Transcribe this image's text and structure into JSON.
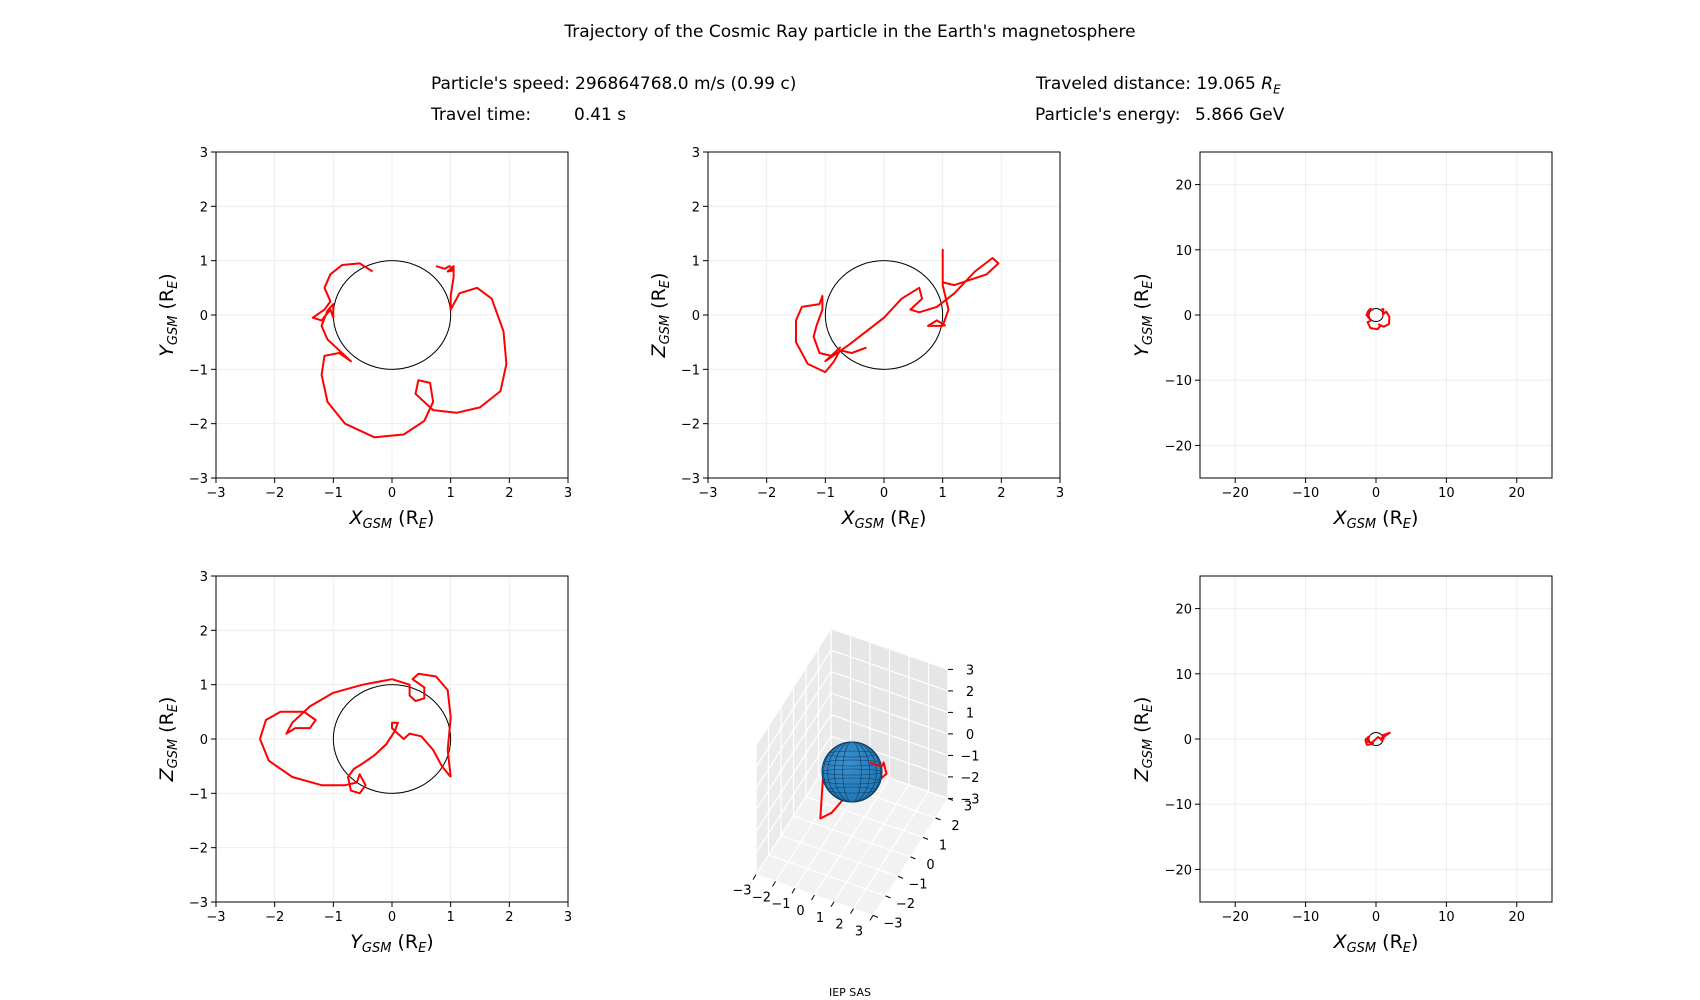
{
  "figure": {
    "title": "Trajectory of the Cosmic Ray particle in the Earth's magnetosphere",
    "footer": "IEP SAS",
    "colors": {
      "trajectory": "#ff0000",
      "earth": "#1f77b4",
      "earth_edge": "#0d3a5c",
      "outline": "#000000",
      "grid": "#eeeeee"
    }
  },
  "info": {
    "speed_label": "Particle's speed:",
    "speed_value": "296864768.0 m/s (0.99 c)",
    "time_label": "Travel time:",
    "time_value": "0.41 s",
    "distance_label": "Traveled distance:",
    "distance_value": "19.065",
    "distance_unit_base": "R",
    "distance_unit_sub": "E",
    "energy_label": "Particle's energy:",
    "energy_value": "5.866 GeV"
  },
  "chart_data": [
    {
      "id": "xy",
      "type": "line",
      "xlabel": "X",
      "xlabel_sub": "GSM",
      "xunit": "(R",
      "xunit_sub": "E",
      "ylabel": "Y",
      "ylabel_sub": "GSM",
      "yunit": "(R",
      "yunit_sub": "E",
      "xlim": [
        -3,
        3
      ],
      "ylim": [
        -3,
        3
      ],
      "xticks": [
        -3,
        -2,
        -1,
        0,
        1,
        2,
        3
      ],
      "yticks": [
        -3,
        -2,
        -1,
        0,
        1,
        2,
        3
      ],
      "grid": true,
      "earth_radius": 1,
      "series": [
        {
          "points": [
            [
              -0.33,
              0.8
            ],
            [
              -0.55,
              0.95
            ],
            [
              -0.85,
              0.92
            ],
            [
              -1.05,
              0.75
            ],
            [
              -1.15,
              0.5
            ],
            [
              -1.05,
              0.25
            ],
            [
              -1.15,
              0.1
            ],
            [
              -1.35,
              -0.05
            ],
            [
              -1.2,
              -0.1
            ],
            [
              -1.05,
              0.1
            ],
            [
              -1.0,
              -0.05
            ],
            [
              -1.0,
              0.2
            ],
            [
              -1.1,
              0.08
            ],
            [
              -1.2,
              -0.2
            ],
            [
              -1.1,
              -0.45
            ],
            [
              -0.9,
              -0.65
            ],
            [
              -0.7,
              -0.85
            ],
            [
              -0.9,
              -0.7
            ],
            [
              -1.15,
              -0.75
            ],
            [
              -1.2,
              -1.1
            ],
            [
              -1.1,
              -1.6
            ],
            [
              -0.8,
              -2.0
            ],
            [
              -0.3,
              -2.25
            ],
            [
              0.2,
              -2.2
            ],
            [
              0.55,
              -1.95
            ],
            [
              0.7,
              -1.6
            ],
            [
              0.65,
              -1.25
            ],
            [
              0.45,
              -1.2
            ],
            [
              0.4,
              -1.45
            ],
            [
              0.7,
              -1.75
            ],
            [
              1.1,
              -1.8
            ],
            [
              1.5,
              -1.7
            ],
            [
              1.85,
              -1.4
            ],
            [
              1.95,
              -0.9
            ],
            [
              1.9,
              -0.3
            ],
            [
              1.7,
              0.3
            ],
            [
              1.45,
              0.5
            ],
            [
              1.15,
              0.4
            ],
            [
              1.0,
              0.1
            ],
            [
              1.0,
              0.35
            ],
            [
              1.05,
              0.7
            ],
            [
              1.05,
              0.9
            ],
            [
              0.95,
              0.8
            ],
            [
              1.05,
              0.82
            ],
            [
              0.98,
              0.9
            ],
            [
              0.9,
              0.85
            ],
            [
              0.75,
              0.9
            ]
          ]
        }
      ]
    },
    {
      "id": "xz",
      "type": "line",
      "xlabel": "X",
      "xlabel_sub": "GSM",
      "xunit": "(R",
      "xunit_sub": "E",
      "ylabel": "Z",
      "ylabel_sub": "GSM",
      "yunit": "(R",
      "yunit_sub": "E",
      "xlim": [
        -3,
        3
      ],
      "ylim": [
        -3,
        3
      ],
      "xticks": [
        -3,
        -2,
        -1,
        0,
        1,
        2,
        3
      ],
      "yticks": [
        -3,
        -2,
        -1,
        0,
        1,
        2,
        3
      ],
      "grid": true,
      "earth_radius": 1,
      "series": [
        {
          "points": [
            [
              -0.3,
              -0.6
            ],
            [
              -0.55,
              -0.7
            ],
            [
              -0.75,
              -0.65
            ],
            [
              -0.85,
              -0.85
            ],
            [
              -1.0,
              -1.05
            ],
            [
              -1.3,
              -0.9
            ],
            [
              -1.5,
              -0.5
            ],
            [
              -1.5,
              -0.1
            ],
            [
              -1.4,
              0.15
            ],
            [
              -1.1,
              0.2
            ],
            [
              -1.05,
              0.35
            ],
            [
              -1.05,
              0.1
            ],
            [
              -1.15,
              -0.2
            ],
            [
              -1.2,
              -0.4
            ],
            [
              -1.1,
              -0.7
            ],
            [
              -0.9,
              -0.75
            ],
            [
              -0.75,
              -0.6
            ],
            [
              -1.0,
              -0.85
            ],
            [
              -0.6,
              -0.55
            ],
            [
              0.0,
              -0.05
            ],
            [
              0.3,
              0.3
            ],
            [
              0.6,
              0.5
            ],
            [
              0.65,
              0.3
            ],
            [
              0.45,
              0.1
            ],
            [
              0.6,
              0.05
            ],
            [
              0.9,
              0.15
            ],
            [
              1.2,
              0.4
            ],
            [
              1.55,
              0.8
            ],
            [
              1.85,
              1.05
            ],
            [
              1.95,
              0.95
            ],
            [
              1.75,
              0.75
            ],
            [
              1.2,
              0.55
            ],
            [
              1.0,
              0.6
            ],
            [
              1.0,
              1.2
            ],
            [
              1.0,
              0.55
            ],
            [
              1.1,
              0.1
            ],
            [
              1.0,
              -0.2
            ],
            [
              0.75,
              -0.2
            ],
            [
              0.9,
              -0.1
            ],
            [
              1.05,
              -0.2
            ]
          ]
        }
      ]
    },
    {
      "id": "xy_wide",
      "type": "line",
      "xlabel": "X",
      "xlabel_sub": "GSM",
      "xunit": "(R",
      "xunit_sub": "E",
      "ylabel": "Y",
      "ylabel_sub": "GSM",
      "yunit": "(R",
      "yunit_sub": "E",
      "xlim": [
        -25,
        25
      ],
      "ylim": [
        -25,
        25
      ],
      "xticks": [
        -20,
        -10,
        0,
        10,
        20
      ],
      "yticks": [
        -20,
        -10,
        0,
        10,
        20
      ],
      "grid": true,
      "earth_radius": 1,
      "series": [
        {
          "points": [
            [
              -0.33,
              0.8
            ],
            [
              -0.85,
              0.92
            ],
            [
              -1.15,
              0.5
            ],
            [
              -1.35,
              -0.05
            ],
            [
              -1.0,
              0.2
            ],
            [
              -1.2,
              -0.2
            ],
            [
              -0.7,
              -0.85
            ],
            [
              -1.2,
              -1.1
            ],
            [
              -0.8,
              -2.0
            ],
            [
              0.2,
              -2.2
            ],
            [
              0.7,
              -1.6
            ],
            [
              0.4,
              -1.45
            ],
            [
              1.1,
              -1.8
            ],
            [
              1.85,
              -1.4
            ],
            [
              1.9,
              -0.3
            ],
            [
              1.45,
              0.5
            ],
            [
              1.0,
              0.1
            ],
            [
              1.05,
              0.9
            ],
            [
              0.75,
              0.9
            ]
          ]
        }
      ]
    },
    {
      "id": "yz",
      "type": "line",
      "xlabel": "Y",
      "xlabel_sub": "GSM",
      "xunit": "(R",
      "xunit_sub": "E",
      "ylabel": "Z",
      "ylabel_sub": "GSM",
      "yunit": "(R",
      "yunit_sub": "E",
      "xlim": [
        -3,
        3
      ],
      "ylim": [
        -3,
        3
      ],
      "xticks": [
        -3,
        -2,
        -1,
        0,
        1,
        2,
        3
      ],
      "yticks": [
        -3,
        -2,
        -1,
        0,
        1,
        2,
        3
      ],
      "grid": true,
      "earth_radius": 1,
      "series": [
        {
          "points": [
            [
              1.0,
              -0.7
            ],
            [
              0.85,
              -0.5
            ],
            [
              0.7,
              -0.2
            ],
            [
              0.5,
              0.05
            ],
            [
              0.3,
              0.1
            ],
            [
              0.2,
              0.0
            ],
            [
              0.05,
              0.15
            ],
            [
              0.1,
              0.3
            ],
            [
              0.0,
              0.3
            ],
            [
              0.0,
              0.2
            ],
            [
              0.05,
              0.15
            ],
            [
              -0.1,
              -0.1
            ],
            [
              -0.3,
              -0.3
            ],
            [
              -0.5,
              -0.45
            ],
            [
              -0.65,
              -0.55
            ],
            [
              -0.75,
              -0.7
            ],
            [
              -0.7,
              -0.95
            ],
            [
              -0.55,
              -1.0
            ],
            [
              -0.45,
              -0.85
            ],
            [
              -0.55,
              -0.65
            ],
            [
              -0.6,
              -0.8
            ],
            [
              -0.8,
              -0.85
            ],
            [
              -1.2,
              -0.85
            ],
            [
              -1.7,
              -0.7
            ],
            [
              -2.1,
              -0.4
            ],
            [
              -2.25,
              0.0
            ],
            [
              -2.15,
              0.35
            ],
            [
              -1.9,
              0.5
            ],
            [
              -1.5,
              0.5
            ],
            [
              -1.3,
              0.35
            ],
            [
              -1.4,
              0.2
            ],
            [
              -1.65,
              0.2
            ],
            [
              -1.8,
              0.1
            ],
            [
              -1.7,
              0.3
            ],
            [
              -1.4,
              0.6
            ],
            [
              -1.0,
              0.85
            ],
            [
              -0.5,
              1.0
            ],
            [
              0.0,
              1.1
            ],
            [
              0.3,
              1.0
            ],
            [
              0.3,
              0.8
            ],
            [
              0.4,
              0.7
            ],
            [
              0.55,
              0.75
            ],
            [
              0.55,
              0.95
            ],
            [
              0.35,
              1.1
            ],
            [
              0.45,
              1.2
            ],
            [
              0.75,
              1.15
            ],
            [
              0.95,
              0.9
            ],
            [
              1.0,
              0.4
            ],
            [
              0.95,
              -0.2
            ],
            [
              1.0,
              -0.7
            ]
          ]
        }
      ]
    },
    {
      "id": "xyz",
      "type": "line",
      "xlim": [
        -3,
        3
      ],
      "ylim": [
        -3,
        3
      ],
      "zlim": [
        -3,
        3
      ],
      "xticks": [
        -3,
        -2,
        -1,
        0,
        1,
        2,
        3
      ],
      "yticks": [
        -3,
        -2,
        -1,
        0,
        1,
        2,
        3
      ],
      "zticks": [
        -3,
        -2,
        -1,
        0,
        1,
        2,
        3
      ],
      "grid": true,
      "earth_radius": 1,
      "series": [
        {
          "points": [
            [
              -0.3,
              0.8,
              -0.6
            ],
            [
              -1.1,
              0.6,
              0.1
            ],
            [
              -1.4,
              -0.1,
              -0.3
            ],
            [
              -1.1,
              -0.7,
              -0.8
            ],
            [
              -0.6,
              -1.6,
              -0.9
            ],
            [
              0.3,
              -2.1,
              0.1
            ],
            [
              0.9,
              -1.6,
              0.8
            ],
            [
              1.8,
              -1.2,
              1.0
            ],
            [
              1.9,
              -0.2,
              0.7
            ],
            [
              1.3,
              0.5,
              0.4
            ],
            [
              1.0,
              0.9,
              -0.2
            ]
          ]
        }
      ]
    },
    {
      "id": "xz_wide",
      "type": "line",
      "xlabel": "X",
      "xlabel_sub": "GSM",
      "xunit": "(R",
      "xunit_sub": "E",
      "ylabel": "Z",
      "ylabel_sub": "GSM",
      "yunit": "(R",
      "yunit_sub": "E",
      "xlim": [
        -25,
        25
      ],
      "ylim": [
        -25,
        25
      ],
      "xticks": [
        -20,
        -10,
        0,
        10,
        20
      ],
      "yticks": [
        -20,
        -10,
        0,
        10,
        20
      ],
      "grid": true,
      "earth_radius": 1,
      "series": [
        {
          "points": [
            [
              -0.3,
              -0.6
            ],
            [
              -0.85,
              -0.85
            ],
            [
              -1.3,
              -0.9
            ],
            [
              -1.5,
              -0.1
            ],
            [
              -1.05,
              0.35
            ],
            [
              -1.2,
              -0.4
            ],
            [
              -0.6,
              -0.55
            ],
            [
              0.3,
              0.3
            ],
            [
              0.6,
              0.05
            ],
            [
              1.2,
              0.4
            ],
            [
              1.95,
              0.95
            ],
            [
              1.0,
              0.6
            ],
            [
              1.1,
              0.1
            ],
            [
              0.75,
              -0.2
            ],
            [
              1.05,
              -0.2
            ]
          ]
        }
      ]
    }
  ]
}
